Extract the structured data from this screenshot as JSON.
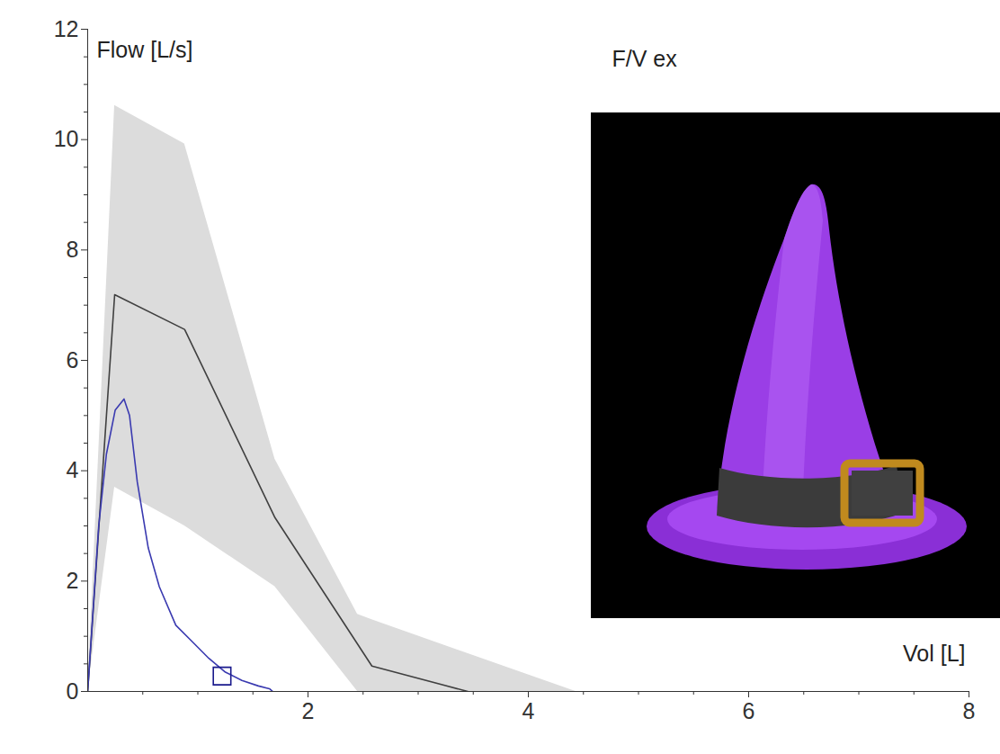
{
  "chart_data": {
    "type": "line",
    "title": "F/V ex",
    "ylabel": "Flow [L/s]",
    "xlabel": "Vol [L]",
    "xlim": [
      0,
      8
    ],
    "xticks": [
      2,
      4,
      6,
      8
    ],
    "ylim": [
      0,
      12
    ],
    "yticks": [
      0,
      2,
      4,
      6,
      8,
      10,
      12
    ],
    "grid": false,
    "series": [
      {
        "type": "area",
        "color": "#dcdcdc",
        "x": [
          0,
          0.245,
          0.88,
          1.7,
          2.45,
          2.58,
          4.43
        ],
        "lower": [
          0,
          3.7,
          3.0,
          1.9,
          0,
          0,
          0
        ],
        "upper": [
          0,
          10.62,
          9.92,
          4.21,
          1.4,
          1.3,
          0
        ]
      },
      {
        "type": "line",
        "color": "#404040",
        "x": [
          0,
          0.245,
          0.88,
          1.7,
          2.58,
          3.45
        ],
        "values": [
          0,
          7.19,
          6.56,
          3.15,
          0.46,
          0
        ]
      },
      {
        "type": "line",
        "color": "#3a3ab0",
        "x": [
          0,
          0.05,
          0.1,
          0.17,
          0.25,
          0.33,
          0.38,
          0.45,
          0.55,
          0.65,
          0.8,
          0.95,
          1.1,
          1.25,
          1.4,
          1.55,
          1.65,
          1.68
        ],
        "values": [
          0,
          1.5,
          3.0,
          4.3,
          5.1,
          5.3,
          5.0,
          3.8,
          2.6,
          1.9,
          1.2,
          0.9,
          0.6,
          0.35,
          0.2,
          0.1,
          0.05,
          0
        ]
      },
      {
        "type": "scatter",
        "marker": "square",
        "color": "#1a1a8c",
        "x": [
          1.22
        ],
        "values": [
          0.28
        ]
      }
    ]
  }
}
